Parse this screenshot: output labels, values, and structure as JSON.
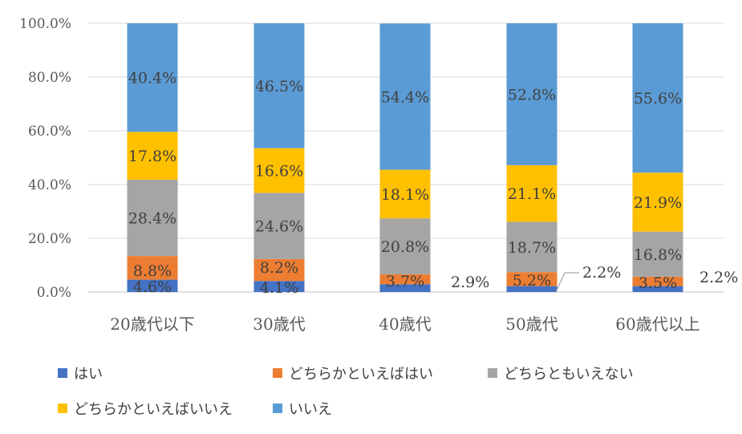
{
  "chart_data": {
    "type": "bar",
    "stacked": true,
    "categories": [
      "20歳代以下",
      "30歳代",
      "40歳代",
      "50歳代",
      "60歳代以上"
    ],
    "ylim": [
      0,
      100
    ],
    "yticks": [
      "0.0%",
      "20.0%",
      "40.0%",
      "60.0%",
      "80.0%",
      "100.0%"
    ],
    "ytick_values": [
      0,
      20,
      40,
      60,
      80,
      100
    ],
    "grid": true,
    "legend_position": "bottom",
    "series": [
      {
        "name": "はい",
        "color": "#4472c4",
        "values": [
          4.6,
          4.1,
          2.9,
          2.2,
          2.2
        ],
        "labels": [
          "4.6%",
          "4.1%",
          "2.9%",
          "2.2%",
          "2.2%"
        ]
      },
      {
        "name": "どちらかといえばはい",
        "color": "#ed7d31",
        "values": [
          8.8,
          8.2,
          3.7,
          5.2,
          3.5
        ],
        "labels": [
          "8.8%",
          "8.2%",
          "3.7%",
          "5.2%",
          "3.5%"
        ]
      },
      {
        "name": "どちらともいえない",
        "color": "#a5a5a5",
        "values": [
          28.4,
          24.6,
          20.8,
          18.7,
          16.8
        ],
        "labels": [
          "28.4%",
          "24.6%",
          "20.8%",
          "18.7%",
          "16.8%"
        ]
      },
      {
        "name": "どちらかといえばいいえ",
        "color": "#ffc000",
        "values": [
          17.8,
          16.6,
          18.1,
          21.1,
          21.9
        ],
        "labels": [
          "17.8%",
          "16.6%",
          "18.1%",
          "21.1%",
          "21.9%"
        ]
      },
      {
        "name": "いいえ",
        "color": "#5b9bd5",
        "values": [
          40.4,
          46.5,
          54.4,
          52.8,
          55.6
        ],
        "labels": [
          "40.4%",
          "46.5%",
          "54.4%",
          "52.8%",
          "55.6%"
        ]
      }
    ]
  },
  "legend": {
    "items": [
      {
        "label": "はい",
        "color": "#4472c4"
      },
      {
        "label": "どちらかといえばはい",
        "color": "#ed7d31"
      },
      {
        "label": "どちらともいえない",
        "color": "#a5a5a5"
      },
      {
        "label": "どちらかといえばいいえ",
        "color": "#ffc000"
      },
      {
        "label": "いいえ",
        "color": "#5b9bd5"
      }
    ]
  }
}
